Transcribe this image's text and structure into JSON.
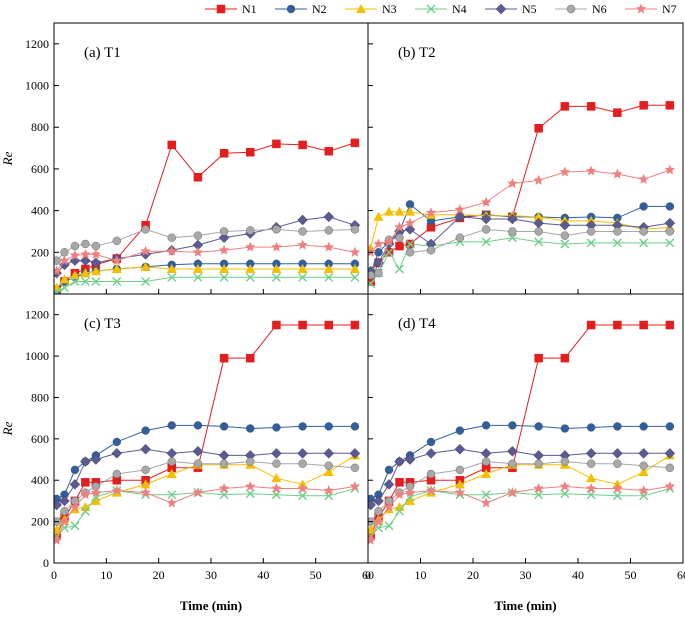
{
  "chart_data": {
    "type": "line",
    "legend": {
      "placement": "top",
      "entries": [
        {
          "name": "N1",
          "color": "#e41e1e",
          "marker": "square"
        },
        {
          "name": "N2",
          "color": "#2f5f9e",
          "marker": "circle"
        },
        {
          "name": "N3",
          "color": "#f5be00",
          "marker": "triangle"
        },
        {
          "name": "N4",
          "color": "#6fcf8a",
          "marker": "x"
        },
        {
          "name": "N5",
          "color": "#5a5a96",
          "marker": "diamond"
        },
        {
          "name": "N6",
          "color": "#a8a8a8",
          "marker": "circle"
        },
        {
          "name": "N7",
          "color": "#f08080",
          "marker": "star"
        }
      ]
    },
    "xlabel": "Time (min)",
    "ylabel": "Re",
    "xlim": [
      0,
      60
    ],
    "ylim": [
      0,
      1300
    ],
    "x_ticks": [
      "0",
      "10",
      "20",
      "30",
      "40",
      "50",
      "60"
    ],
    "y_ticks": [
      "0",
      "200",
      "400",
      "600",
      "800",
      "1000",
      "1200"
    ],
    "x": [
      0.5,
      2,
      4,
      6,
      8,
      12,
      17.5,
      22.5,
      27.5,
      32.5,
      37.5,
      42.5,
      47.5,
      52.5,
      57.5
    ],
    "panels": [
      {
        "label": "(a) T1",
        "series": [
          {
            "name": "N1",
            "values": [
              20,
              60,
              100,
              120,
              140,
              170,
              330,
              715,
              560,
              675,
              680,
              720,
              715,
              685,
              725
            ]
          },
          {
            "name": "N2",
            "values": [
              10,
              60,
              80,
              100,
              110,
              120,
              130,
              140,
              145,
              145,
              145,
              145,
              145,
              145,
              145
            ]
          },
          {
            "name": "N3",
            "values": [
              30,
              70,
              90,
              100,
              110,
              120,
              130,
              120,
              120,
              120,
              120,
              120,
              120,
              120,
              120
            ]
          },
          {
            "name": "N4",
            "values": [
              10,
              30,
              60,
              60,
              60,
              60,
              60,
              80,
              80,
              80,
              80,
              80,
              80,
              80,
              80
            ]
          },
          {
            "name": "N5",
            "values": [
              100,
              140,
              160,
              160,
              150,
              170,
              190,
              210,
              235,
              270,
              290,
              320,
              355,
              370,
              330
            ]
          },
          {
            "name": "N6",
            "values": [
              160,
              200,
              230,
              240,
              230,
              255,
              310,
              270,
              280,
              300,
              305,
              310,
              300,
              305,
              310
            ]
          },
          {
            "name": "N7",
            "values": [
              110,
              160,
              185,
              190,
              190,
              160,
              205,
              205,
              200,
              210,
              225,
              225,
              235,
              225,
              200
            ]
          }
        ]
      },
      {
        "label": "(b) T2",
        "series": [
          {
            "name": "N1",
            "values": [
              60,
              150,
              200,
              230,
              240,
              320,
              365,
              380,
              370,
              795,
              900,
              900,
              870,
              905,
              905
            ]
          },
          {
            "name": "N2",
            "values": [
              100,
              200,
              250,
              300,
              430,
              350,
              370,
              380,
              370,
              370,
              365,
              370,
              365,
              420,
              420
            ]
          },
          {
            "name": "N3",
            "values": [
              220,
              370,
              395,
              395,
              395,
              380,
              380,
              375,
              375,
              370,
              350,
              350,
              340,
              310,
              320
            ]
          },
          {
            "name": "N4",
            "values": [
              50,
              100,
              200,
              120,
              240,
              230,
              250,
              250,
              270,
              250,
              240,
              245,
              245,
              245,
              245
            ]
          },
          {
            "name": "N5",
            "values": [
              110,
              150,
              240,
              300,
              310,
              240,
              370,
              360,
              360,
              340,
              330,
              330,
              330,
              320,
              340
            ]
          },
          {
            "name": "N6",
            "values": [
              90,
              100,
              260,
              270,
              200,
              210,
              270,
              310,
              300,
              300,
              280,
              300,
              300,
              300,
              300
            ]
          },
          {
            "name": "N7",
            "values": [
              200,
              240,
              250,
              320,
              340,
              390,
              405,
              440,
              530,
              545,
              585,
              590,
              575,
              550,
              595
            ]
          }
        ]
      },
      {
        "label": "(c) T3",
        "series": [
          {
            "name": "N1",
            "values": [
              130,
              220,
              300,
              390,
              390,
              400,
              400,
              460,
              460,
              990,
              990,
              1150,
              1150,
              1150,
              1150
            ]
          },
          {
            "name": "N2",
            "values": [
              310,
              330,
              450,
              490,
              520,
              585,
              640,
              665,
              665,
              660,
              650,
              655,
              660,
              660,
              660
            ]
          },
          {
            "name": "N3",
            "values": [
              160,
              210,
              260,
              270,
              300,
              340,
              380,
              430,
              475,
              475,
              475,
              410,
              380,
              440,
              520
            ]
          },
          {
            "name": "N4",
            "values": [
              130,
              170,
              180,
              250,
              320,
              350,
              330,
              330,
              340,
              330,
              335,
              330,
              325,
              325,
              360
            ]
          },
          {
            "name": "N5",
            "values": [
              280,
              300,
              380,
              490,
              500,
              530,
              550,
              530,
              540,
              520,
              520,
              530,
              530,
              530,
              530
            ]
          },
          {
            "name": "N6",
            "values": [
              200,
              250,
              300,
              340,
              370,
              430,
              450,
              490,
              480,
              480,
              490,
              480,
              480,
              470,
              460
            ]
          },
          {
            "name": "N7",
            "values": [
              110,
              200,
              270,
              330,
              340,
              350,
              340,
              290,
              340,
              360,
              370,
              360,
              360,
              350,
              370
            ]
          }
        ]
      },
      {
        "label": "(d) T4",
        "series": [
          {
            "name": "N1",
            "values": [
              130,
              220,
              300,
              390,
              390,
              400,
              400,
              460,
              460,
              990,
              990,
              1150,
              1150,
              1150,
              1150
            ]
          },
          {
            "name": "N2",
            "values": [
              310,
              330,
              450,
              490,
              520,
              585,
              640,
              665,
              665,
              660,
              650,
              655,
              660,
              660,
              660
            ]
          },
          {
            "name": "N3",
            "values": [
              160,
              210,
              260,
              270,
              300,
              340,
              380,
              430,
              475,
              475,
              475,
              410,
              380,
              440,
              520
            ]
          },
          {
            "name": "N4",
            "values": [
              130,
              170,
              180,
              250,
              320,
              350,
              330,
              330,
              340,
              330,
              335,
              330,
              325,
              325,
              360
            ]
          },
          {
            "name": "N5",
            "values": [
              280,
              300,
              380,
              490,
              500,
              530,
              550,
              530,
              540,
              520,
              520,
              530,
              530,
              530,
              530
            ]
          },
          {
            "name": "N6",
            "values": [
              200,
              250,
              300,
              340,
              370,
              430,
              450,
              490,
              480,
              480,
              490,
              480,
              480,
              470,
              460
            ]
          },
          {
            "name": "N7",
            "values": [
              110,
              200,
              270,
              330,
              340,
              350,
              340,
              290,
              340,
              360,
              370,
              360,
              360,
              350,
              370
            ]
          }
        ]
      }
    ]
  }
}
